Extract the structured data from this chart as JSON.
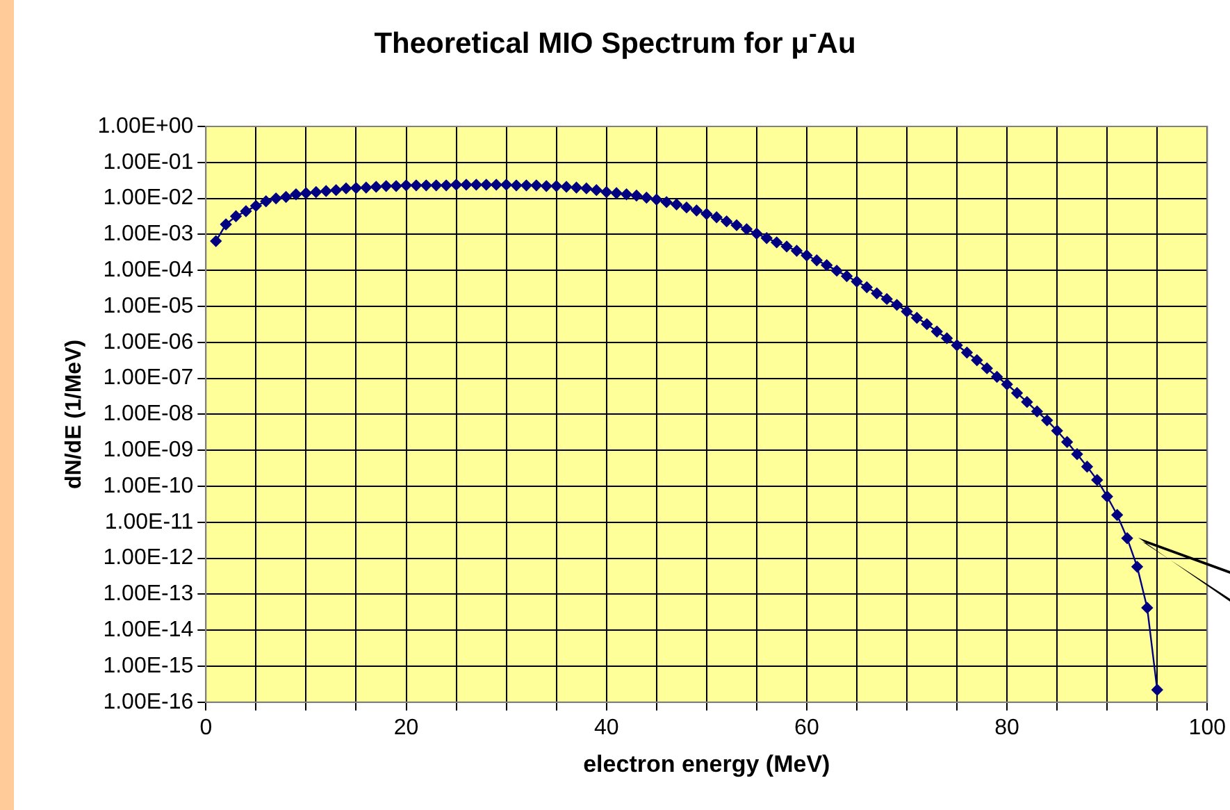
{
  "chart_data": {
    "type": "line",
    "title": "Theoretical MIO Spectrum for μ$^{-}$Au",
    "xlabel": "electron energy (MeV)",
    "ylabel": "dN/dE (1/MeV)",
    "x": [
      1,
      2,
      3,
      4,
      5,
      6,
      7,
      8,
      9,
      10,
      11,
      12,
      13,
      14,
      15,
      16,
      17,
      18,
      19,
      20,
      21,
      22,
      23,
      24,
      25,
      26,
      27,
      28,
      29,
      30,
      31,
      32,
      33,
      34,
      35,
      36,
      37,
      38,
      39,
      40,
      41,
      42,
      43,
      44,
      45,
      46,
      47,
      48,
      49,
      50,
      51,
      52,
      53,
      54,
      55,
      56,
      57,
      58,
      59,
      60,
      61,
      62,
      63,
      64,
      65,
      66,
      67,
      68,
      69,
      70,
      71,
      72,
      73,
      74,
      75,
      76,
      77,
      78,
      79,
      80,
      81,
      82,
      83,
      84,
      85,
      86,
      87,
      88,
      89,
      90,
      91,
      92,
      93,
      94,
      95
    ],
    "series": [
      {
        "color": "#000080",
        "values": [
          0.00065,
          0.0019,
          0.0032,
          0.0044,
          0.0062,
          0.0083,
          0.01,
          0.011,
          0.013,
          0.014,
          0.015,
          0.016,
          0.017,
          0.019,
          0.0195,
          0.02,
          0.021,
          0.022,
          0.022,
          0.023,
          0.023,
          0.023,
          0.023,
          0.023,
          0.024,
          0.024,
          0.024,
          0.024,
          0.024,
          0.024,
          0.023,
          0.023,
          0.023,
          0.022,
          0.022,
          0.021,
          0.02,
          0.019,
          0.017,
          0.015,
          0.014,
          0.013,
          0.012,
          0.0105,
          0.0093,
          0.0079,
          0.0068,
          0.0056,
          0.0046,
          0.0037,
          0.003,
          0.0023,
          0.0018,
          0.0014,
          0.00105,
          0.00079,
          0.0006,
          0.00046,
          0.00035,
          0.00026,
          0.00019,
          0.00014,
          9.8e-05,
          6.9e-05,
          4.9e-05,
          3.4e-05,
          2.3e-05,
          1.6e-05,
          1.1e-05,
          7.2e-06,
          4.8e-06,
          3.2e-06,
          2e-06,
          1.3e-06,
          8.3e-07,
          5.2e-07,
          3.2e-07,
          1.9e-07,
          1.1e-07,
          6.8e-08,
          3.9e-08,
          2.2e-08,
          1.2e-08,
          6.8e-09,
          3.5e-09,
          1.7e-09,
          7.8e-10,
          3.5e-10,
          1.5e-10,
          5.2e-11,
          1.6e-11,
          3.6e-12,
          5.8e-13,
          4.2e-14,
          2.2e-16
        ]
      }
    ],
    "xlim": [
      0,
      100
    ],
    "xticks": [
      0,
      {
        "value": 5,
        "label": null
      },
      20,
      {
        "value": 10,
        "label": null
      },
      {
        "value": 15,
        "label": null
      },
      {
        "value": 25,
        "label": null
      },
      {
        "value": 30,
        "label": null
      },
      {
        "value": 35,
        "label": null
      },
      40,
      {
        "value": 45,
        "label": null
      },
      {
        "value": 50,
        "label": null
      },
      {
        "value": 55,
        "label": null
      },
      60,
      {
        "value": 65,
        "label": null
      },
      {
        "value": 70,
        "label": null
      },
      {
        "value": 75,
        "label": null
      },
      80,
      {
        "value": 85,
        "label": null
      },
      {
        "value": 90,
        "label": null
      },
      {
        "value": 95,
        "label": null
      },
      100
    ],
    "ylim": [
      1e-16,
      1
    ],
    "yticks": [
      {
        "value": 1,
        "label": "1.00E+00"
      },
      {
        "value": 0.1,
        "label": "1.00E-01"
      },
      {
        "value": 0.01,
        "label": "1.00E-02"
      },
      {
        "value": 0.001,
        "label": "1.00E-03"
      },
      {
        "value": 0.0001,
        "label": "1.00E-04"
      },
      {
        "value": 1e-05,
        "label": "1.00E-05"
      },
      {
        "value": 1e-06,
        "label": "1.00E-06"
      },
      {
        "value": 1e-07,
        "label": "1.00E-07"
      },
      {
        "value": 1e-08,
        "label": "1.00E-08"
      },
      {
        "value": 1e-09,
        "label": "1.00E-09"
      },
      {
        "value": 1e-10,
        "label": "1.00E-10"
      },
      {
        "value": 1e-11,
        "label": "1.00E-11"
      },
      {
        "value": 1e-12,
        "label": "1.00E-12"
      },
      {
        "value": 1e-13,
        "label": "1.00E-13"
      },
      {
        "value": 1e-14,
        "label": "1.00E-14"
      },
      {
        "value": 1e-15,
        "label": "1.00E-15"
      },
      {
        "value": 1e-16,
        "label": "1.00E-16"
      }
    ],
    "log": "y",
    "grid": true,
    "legend": false,
    "marker": "diamond",
    "line_style": "solid"
  }
}
